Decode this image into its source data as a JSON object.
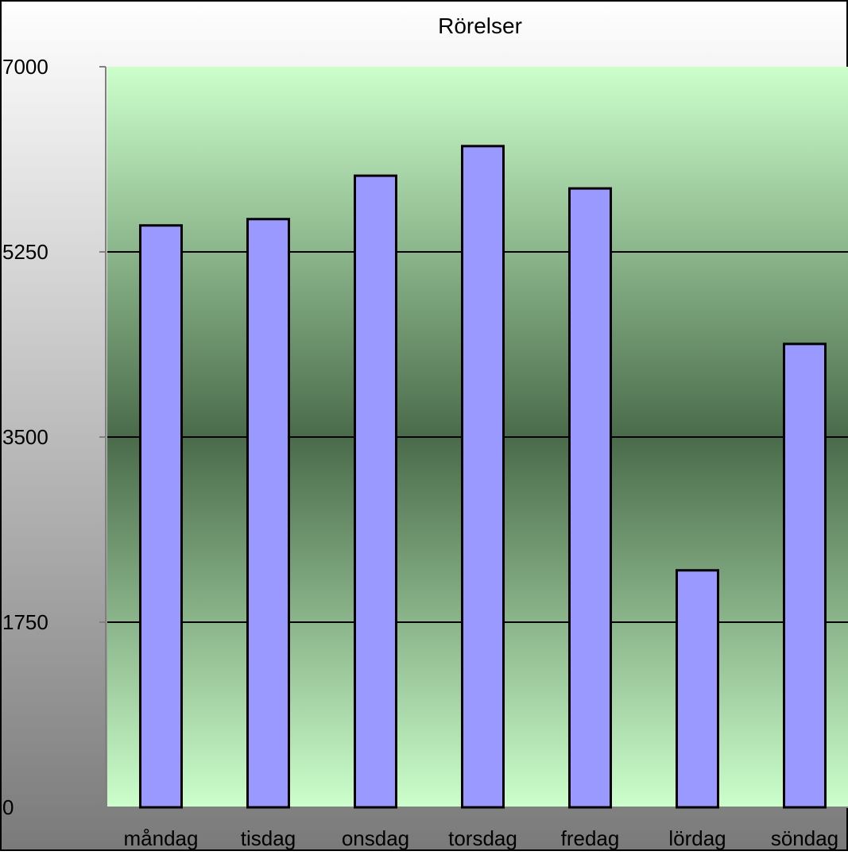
{
  "chart_data": {
    "type": "bar",
    "title": "Rörelser",
    "xlabel": "",
    "ylabel": "",
    "categories": [
      "måndag",
      "tisdag",
      "onsdag",
      "torsdag",
      "fredag",
      "lördag",
      "söndag"
    ],
    "series": [
      {
        "values": [
          5500,
          5560,
          5970,
          6250,
          5850,
          2240,
          4380
        ]
      }
    ],
    "ylim": [
      0,
      7000
    ],
    "yticks": [
      "0",
      "1750",
      "3500",
      "5250",
      "7000"
    ],
    "grid": true,
    "legend": "none",
    "colors": {
      "bar_fill": "#9999ff",
      "bar_stroke": "#000000",
      "plot_light": "#ccffcc",
      "plot_dark": "#4a6b4a",
      "outer_light": "#ffffff",
      "outer_dark": "#7a7a7a",
      "gridline": "#000000"
    }
  }
}
